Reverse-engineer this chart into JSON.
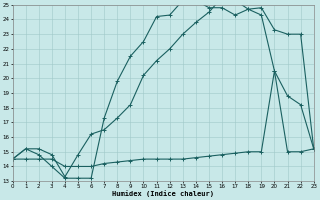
{
  "xlabel": "Humidex (Indice chaleur)",
  "xlim": [
    0,
    23
  ],
  "ylim": [
    13,
    25
  ],
  "xticks": [
    0,
    1,
    2,
    3,
    4,
    5,
    6,
    7,
    8,
    9,
    10,
    11,
    12,
    13,
    14,
    15,
    16,
    17,
    18,
    19,
    20,
    21,
    22,
    23
  ],
  "yticks": [
    13,
    14,
    15,
    16,
    17,
    18,
    19,
    20,
    21,
    22,
    23,
    24,
    25
  ],
  "bg_color": "#c8e8e8",
  "grid_color": "#a0c8c8",
  "line_color": "#1a6060",
  "curve1_x": [
    0,
    1,
    2,
    3,
    4,
    5,
    6,
    7,
    8,
    9,
    10,
    11,
    12,
    13,
    14,
    15,
    16,
    17,
    18,
    19,
    20,
    21,
    22,
    23
  ],
  "curve1_y": [
    14.5,
    15.2,
    14.8,
    14.0,
    13.2,
    13.2,
    13.2,
    17.3,
    19.8,
    21.5,
    22.5,
    24.2,
    24.3,
    25.3,
    25.3,
    24.8,
    24.8,
    24.3,
    24.7,
    24.8,
    23.3,
    23.0,
    23.0,
    15.2
  ],
  "curve2_x": [
    0,
    1,
    2,
    3,
    4,
    5,
    6,
    7,
    8,
    9,
    10,
    11,
    12,
    13,
    14,
    15,
    16,
    17,
    18,
    19,
    20,
    21,
    22,
    23
  ],
  "curve2_y": [
    14.5,
    15.2,
    15.2,
    14.8,
    13.3,
    14.8,
    16.2,
    16.5,
    17.3,
    18.2,
    20.2,
    21.2,
    22.0,
    23.0,
    23.8,
    24.5,
    25.5,
    25.3,
    24.7,
    24.3,
    20.5,
    18.8,
    18.2,
    15.2
  ],
  "curve3_x": [
    0,
    1,
    2,
    3,
    4,
    5,
    6,
    7,
    8,
    9,
    10,
    11,
    12,
    13,
    14,
    15,
    16,
    17,
    18,
    19,
    20,
    21,
    22,
    23
  ],
  "curve3_y": [
    14.5,
    14.5,
    14.5,
    14.5,
    14.0,
    14.0,
    14.0,
    14.2,
    14.3,
    14.4,
    14.5,
    14.5,
    14.5,
    14.5,
    14.6,
    14.7,
    14.8,
    14.9,
    15.0,
    15.0,
    20.5,
    15.0,
    15.0,
    15.2
  ]
}
